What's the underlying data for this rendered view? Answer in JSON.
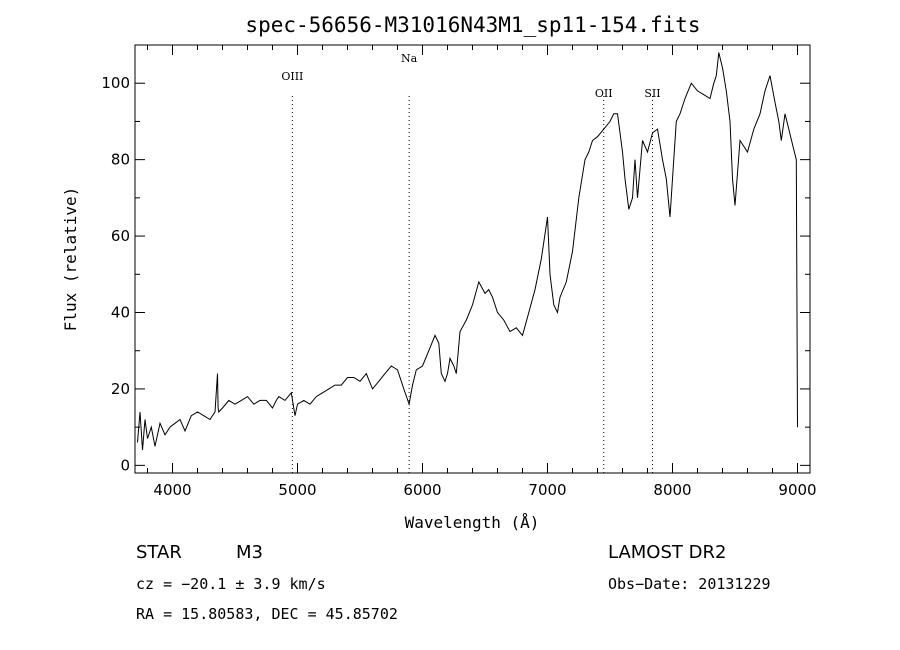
{
  "chart_data": {
    "type": "line",
    "title": "spec-56656-M31016N43M1_sp11-154.fits",
    "xlabel": "Wavelength (Å)",
    "ylabel": "Flux (relative)",
    "xlim": [
      3700,
      9100
    ],
    "ylim": [
      -2,
      110
    ],
    "x_ticks": [
      4000,
      5000,
      6000,
      7000,
      8000,
      9000
    ],
    "y_ticks": [
      0,
      20,
      40,
      60,
      80,
      100
    ],
    "grid": false,
    "line_marks": [
      {
        "label": "OIII",
        "x": 4959
      },
      {
        "label": "Na",
        "x": 5893
      },
      {
        "label": "OII",
        "x": 7450
      },
      {
        "label": "SII",
        "x": 7840
      }
    ],
    "series": [
      {
        "x": [
          3720,
          3740,
          3760,
          3780,
          3800,
          3830,
          3860,
          3900,
          3940,
          3980,
          4020,
          4060,
          4100,
          4150,
          4200,
          4250,
          4300,
          4340,
          4360,
          4365,
          4370,
          4400,
          4450,
          4500,
          4550,
          4600,
          4650,
          4700,
          4750,
          4800,
          4830,
          4850,
          4900,
          4950,
          4980,
          5000,
          5050,
          5100,
          5150,
          5200,
          5250,
          5300,
          5350,
          5400,
          5450,
          5500,
          5550,
          5600,
          5650,
          5700,
          5750,
          5800,
          5850,
          5893,
          5920,
          5950,
          6000,
          6050,
          6100,
          6130,
          6150,
          6180,
          6200,
          6220,
          6250,
          6270,
          6300,
          6350,
          6400,
          6450,
          6500,
          6530,
          6560,
          6600,
          6650,
          6700,
          6750,
          6800,
          6850,
          6900,
          6950,
          7000,
          7020,
          7050,
          7080,
          7100,
          7150,
          7200,
          7250,
          7300,
          7330,
          7360,
          7400,
          7450,
          7500,
          7530,
          7560,
          7580,
          7600,
          7620,
          7650,
          7680,
          7700,
          7720,
          7760,
          7800,
          7840,
          7880,
          7920,
          7950,
          7980,
          8000,
          8030,
          8060,
          8100,
          8150,
          8200,
          8250,
          8300,
          8330,
          8350,
          8370,
          8400,
          8430,
          8460,
          8480,
          8500,
          8540,
          8600,
          8650,
          8700,
          8740,
          8780,
          8820,
          8850,
          8870,
          8900,
          8930,
          8960,
          8990,
          9000
        ],
        "y": [
          6,
          14,
          4,
          12,
          7,
          10,
          5,
          11,
          8,
          10,
          11,
          12,
          9,
          13,
          14,
          13,
          12,
          14,
          24,
          15,
          14,
          15,
          17,
          16,
          17,
          18,
          16,
          17,
          17,
          15,
          17,
          18,
          17,
          19,
          13,
          16,
          17,
          16,
          18,
          19,
          20,
          21,
          21,
          23,
          23,
          22,
          24,
          20,
          22,
          24,
          26,
          25,
          20,
          16,
          21,
          25,
          26,
          30,
          34,
          32,
          24,
          22,
          24,
          28,
          26,
          24,
          35,
          38,
          42,
          48,
          45,
          46,
          44,
          40,
          38,
          35,
          36,
          34,
          40,
          46,
          54,
          65,
          50,
          42,
          40,
          44,
          48,
          56,
          70,
          80,
          82,
          85,
          86,
          88,
          90,
          92,
          92,
          87,
          82,
          75,
          67,
          70,
          80,
          70,
          85,
          82,
          87,
          88,
          80,
          75,
          65,
          75,
          90,
          92,
          96,
          100,
          98,
          97,
          96,
          100,
          102,
          108,
          104,
          98,
          90,
          75,
          68,
          85,
          82,
          88,
          92,
          98,
          102,
          95,
          90,
          85,
          92,
          88,
          84,
          80,
          10
        ]
      }
    ]
  },
  "info": {
    "object_class": "STAR",
    "subclass": "M3",
    "catalog": "LAMOST DR2",
    "cz": "cz = −20.1 ± 3.9 km/s",
    "obs_date": "Obs−Date: 20131229",
    "coords": "RA =  15.80583, DEC =  45.85702"
  }
}
